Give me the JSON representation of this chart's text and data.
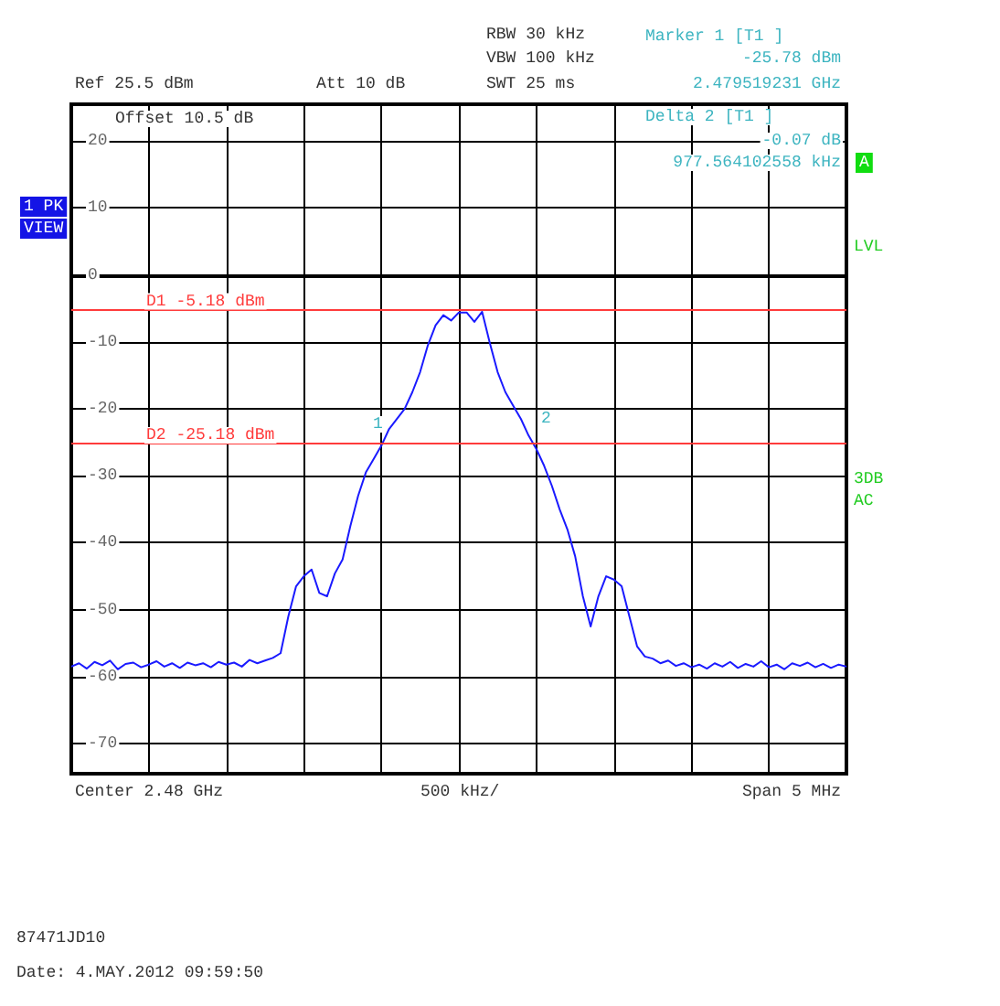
{
  "chart_data": {
    "type": "line",
    "categories": [
      null,
      null,
      null,
      null,
      null,
      null,
      null,
      null,
      null,
      null,
      null,
      null,
      null,
      null,
      null,
      null,
      null,
      null,
      null,
      null,
      null,
      null,
      null,
      null,
      null,
      null,
      null,
      null,
      null,
      null,
      null,
      null,
      null,
      null,
      null,
      null,
      null,
      null,
      null,
      null,
      null,
      null,
      null,
      null,
      null,
      null,
      null,
      null,
      null,
      null,
      null,
      null,
      null,
      null,
      null,
      null,
      null,
      null,
      null,
      null,
      null,
      null,
      null,
      null,
      null,
      null,
      null,
      null,
      null,
      null,
      null,
      null,
      null,
      null,
      null,
      null,
      null,
      null,
      null,
      null,
      null,
      null,
      null,
      null,
      null,
      null,
      null,
      null,
      null,
      null,
      null,
      null,
      null,
      null,
      null,
      null,
      null,
      null,
      null,
      null,
      null
    ],
    "series": [
      {
        "color": "#1a1aff",
        "values": [
          -58.5,
          -58,
          -58.8,
          -57.8,
          -58.3,
          -57.6,
          -58.9,
          -58.1,
          -57.9,
          -58.6,
          -58.2,
          -57.7,
          -58.5,
          -58,
          -58.7,
          -57.9,
          -58.3,
          -58,
          -58.6,
          -57.8,
          -58.2,
          -57.9,
          -58.5,
          -57.5,
          -58,
          -57.6,
          -57.2,
          -56.5,
          -51,
          -46.5,
          -45,
          -44,
          -47.5,
          -48,
          -44.6,
          -42.5,
          -37.5,
          -33,
          -29.5,
          -27.5,
          -25.5,
          -23,
          -21.5,
          -20,
          -17.5,
          -14.5,
          -10.5,
          -7.5,
          -6,
          -6.8,
          -5.6,
          -5.6,
          -7,
          -5.5,
          -10.2,
          -14.5,
          -17.5,
          -19.5,
          -21.5,
          -24,
          -26,
          -28.5,
          -31.5,
          -35,
          -38,
          -42,
          -48,
          -52.5,
          -48,
          -45,
          -45.5,
          -46.5,
          -51,
          -55.5,
          -57,
          -57.3,
          -58,
          -57.6,
          -58.4,
          -58,
          -58.6,
          -58.2,
          -58.8,
          -58,
          -58.5,
          -57.8,
          -58.7,
          -58.1,
          -58.5,
          -57.7,
          -58.6,
          -58.2,
          -58.9,
          -58,
          -58.4,
          -57.9,
          -58.6,
          -58.1,
          -58.7,
          -58.2,
          -58.5
        ]
      }
    ],
    "ylim": [
      -74.5,
      25.5
    ],
    "yticks": [
      -70,
      -60,
      -50,
      -40,
      -30,
      -20,
      -10,
      0,
      10,
      20
    ],
    "grid": true,
    "tick_labels": "y",
    "line_style": "solid",
    "ref_lines": [
      {
        "axis": "y",
        "value": -5.18,
        "label": "D1 -5.18 dBm",
        "color": "#ff3b3b"
      },
      {
        "axis": "y",
        "value": -25.18,
        "label": "D2 -25.18 dBm",
        "color": "#ff3b3b"
      }
    ],
    "annotations": [
      "RBW 30 kHz",
      "VBW 100 kHz",
      "SWT 25 ms",
      "Ref 25.5 dBm",
      "Att 10 dB",
      "Offset 10.5 dB",
      "Marker 1 [T1 ]",
      "-25.78 dBm",
      "2.479519231 GHz",
      "Delta 2 [T1 ]",
      "-0.07 dB",
      "977.564102558 kHz",
      "A",
      "1 PK",
      "VIEW",
      "LVL",
      "3DB",
      "AC",
      "Center 2.48 GHz",
      "500 kHz/",
      "Span 5 MHz",
      "87471JD10",
      "Date: 4.MAY.2012 09:59:50",
      "1",
      "2"
    ]
  }
}
